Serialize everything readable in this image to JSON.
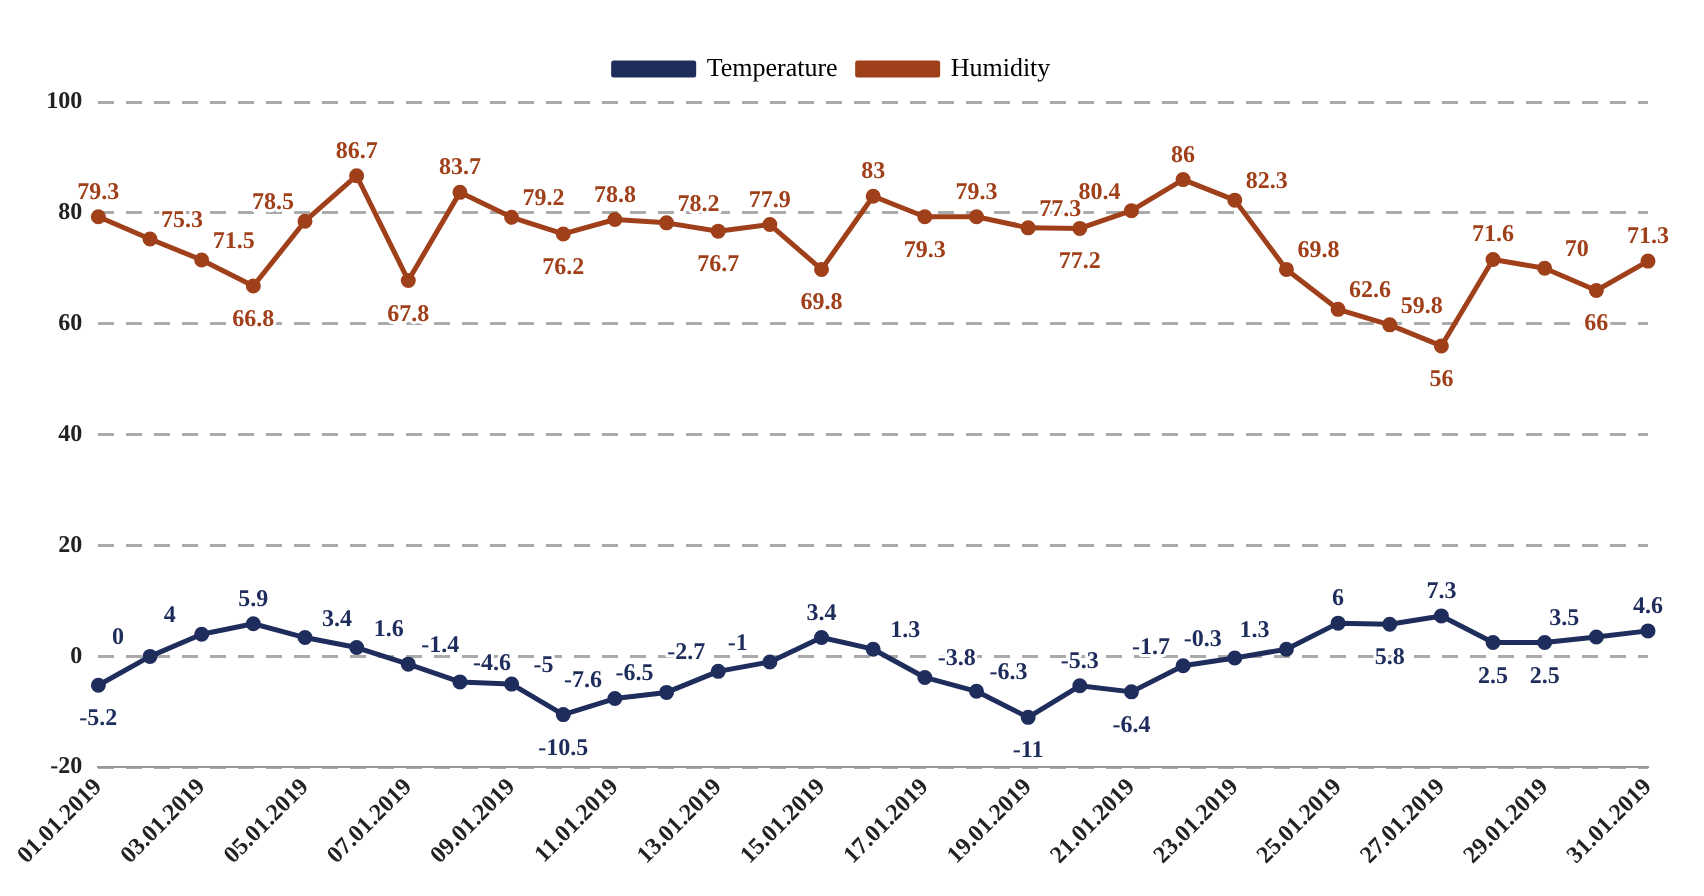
{
  "chart_data": {
    "type": "line",
    "categories": [
      "01.01.2019",
      null,
      "03.01.2019",
      null,
      "05.01.2019",
      null,
      "07.01.2019",
      null,
      "09.01.2019",
      null,
      "11.01.2019",
      null,
      "13.01.2019",
      null,
      "15.01.2019",
      null,
      "17.01.2019",
      null,
      "19.01.2019",
      null,
      "21.01.2019",
      null,
      "23.01.2019",
      null,
      "25.01.2019",
      null,
      "27.01.2019",
      null,
      "29.01.2019",
      null,
      "31.01.2019"
    ],
    "series": [
      {
        "name": "Temperature",
        "color": "#1f2d5c",
        "values": [
          -5.2,
          0,
          4,
          5.9,
          3.4,
          1.6,
          -1.4,
          -4.6,
          -5,
          -10.5,
          -7.6,
          -6.5,
          -2.7,
          -1,
          3.4,
          1.3,
          -3.8,
          -6.3,
          -11,
          -5.3,
          -6.4,
          -1.7,
          -0.3,
          1.3,
          6,
          5.8,
          7.3,
          2.5,
          2.5,
          3.5,
          4.6
        ]
      },
      {
        "name": "Humidity",
        "color": "#a0401a",
        "values": [
          79.3,
          75.3,
          71.5,
          66.8,
          78.5,
          86.7,
          67.8,
          83.7,
          79.2,
          76.2,
          78.8,
          78.2,
          76.7,
          77.9,
          69.8,
          83,
          79.3,
          79.3,
          77.3,
          77.2,
          80.4,
          86,
          82.3,
          69.8,
          62.6,
          59.8,
          56,
          71.6,
          70,
          66,
          71.3
        ]
      }
    ],
    "ylim": [
      -20,
      100
    ],
    "yticks": [
      -20,
      0,
      20,
      40,
      60,
      80,
      100
    ],
    "grid": "y",
    "legend": "top",
    "marker": "circle",
    "line_style": "solid",
    "data_labels": true
  }
}
